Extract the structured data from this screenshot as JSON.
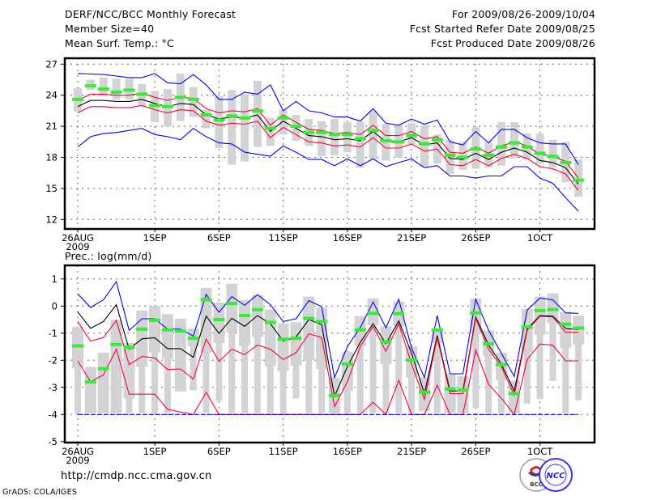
{
  "header": {
    "title": "DERF/NCC/BCC Monthly Forecast",
    "member_size": "Member Size=40",
    "variable": "Mean Surf. Temp.: °C",
    "period": "For 2009/08/26-2009/10/04",
    "start_date": "Fcst Started Refer Date 2009/08/25",
    "produced_date": "Fcst Produced Date 2009/08/26"
  },
  "footer": {
    "url": "http://cmdp.ncc.cma.gov.cn",
    "credit": "GrADS: COLA/IGES",
    "logo_left": "BCC",
    "logo_right": "NCC"
  },
  "colors": {
    "mean": "#000000",
    "spread": "#ff0033",
    "envelope": "#0000ff",
    "obs": "#33ee33",
    "range": "#d3d3d6"
  },
  "chart_data": [
    {
      "type": "line",
      "title": "Mean Surf. Temp.: °C",
      "xlabel": "",
      "ylabel": "",
      "ylim": [
        12,
        27
      ],
      "yticks": [
        12,
        15,
        18,
        21,
        24,
        27
      ],
      "x_tick_labels": [
        {
          "day": 0,
          "label": "26AUG",
          "sub": "2009"
        },
        {
          "day": 6,
          "label": "1SEP"
        },
        {
          "day": 11,
          "label": "6SEP"
        },
        {
          "day": 16,
          "label": "11SEP"
        },
        {
          "day": 21,
          "label": "16SEP"
        },
        {
          "day": 26,
          "label": "21SEP"
        },
        {
          "day": 31,
          "label": "26SEP"
        },
        {
          "day": 36,
          "label": "1OCT"
        }
      ],
      "grid": true,
      "days": 40,
      "series": [
        {
          "name": "ensemble_mean",
          "values": [
            22.9,
            23.5,
            23.5,
            23.4,
            23.4,
            23.6,
            23.2,
            22.9,
            23.2,
            23.1,
            22.1,
            21.7,
            21.9,
            21.8,
            22.1,
            20.5,
            21.5,
            20.8,
            20.1,
            20.0,
            19.7,
            19.8,
            19.6,
            20.5,
            19.5,
            19.5,
            19.9,
            19.2,
            19.4,
            17.9,
            17.8,
            18.4,
            17.8,
            18.5,
            18.9,
            18.5,
            17.7,
            17.5,
            17.0,
            15.4
          ]
        },
        {
          "name": "spread_upper",
          "values": [
            23.5,
            24.1,
            24.1,
            24.0,
            24.0,
            24.2,
            23.8,
            23.5,
            23.8,
            23.7,
            22.7,
            22.3,
            22.5,
            22.4,
            22.7,
            21.1,
            22.1,
            21.4,
            20.7,
            20.6,
            20.3,
            20.4,
            20.2,
            21.1,
            20.1,
            20.1,
            20.5,
            19.8,
            20.0,
            18.5,
            18.4,
            19.0,
            18.4,
            19.1,
            19.5,
            19.1,
            18.3,
            18.1,
            17.6,
            16.0
          ]
        },
        {
          "name": "spread_lower",
          "values": [
            22.3,
            22.9,
            22.9,
            22.8,
            22.8,
            23.0,
            22.6,
            22.3,
            22.6,
            22.5,
            21.5,
            21.1,
            21.3,
            21.2,
            21.5,
            19.9,
            20.9,
            20.2,
            19.5,
            19.4,
            19.1,
            19.2,
            19.0,
            19.9,
            18.9,
            18.9,
            19.3,
            18.6,
            18.8,
            17.3,
            17.2,
            17.8,
            17.2,
            17.9,
            18.3,
            17.9,
            17.1,
            16.9,
            16.4,
            14.8
          ]
        },
        {
          "name": "ensemble_max",
          "values": [
            26.1,
            26.05,
            26.0,
            25.85,
            25.7,
            25.7,
            26.1,
            25.2,
            25.1,
            26.0,
            25.0,
            23.6,
            23.6,
            24.3,
            24.1,
            25.0,
            22.5,
            23.4,
            22.5,
            22.3,
            21.9,
            21.9,
            21.5,
            22.7,
            21.3,
            21.1,
            21.7,
            21.2,
            21.6,
            19.5,
            19.2,
            20.5,
            19.4,
            20.7,
            20.7,
            19.9,
            19.4,
            19.3,
            19.3,
            17.3
          ]
        },
        {
          "name": "ensemble_min",
          "values": [
            19.0,
            20.0,
            20.3,
            20.4,
            20.6,
            20.8,
            20.2,
            20.0,
            19.7,
            20.8,
            20.0,
            19.4,
            19.3,
            18.5,
            18.3,
            18.1,
            19.1,
            18.5,
            17.8,
            17.8,
            17.2,
            17.85,
            17.2,
            17.85,
            17.1,
            17.5,
            17.85,
            17.0,
            17.2,
            16.2,
            16.2,
            16.0,
            16.2,
            16.2,
            17.1,
            17.1,
            16.0,
            15.5,
            14.1,
            12.8
          ]
        },
        {
          "name": "observed",
          "values": [
            23.6,
            24.9,
            24.6,
            24.3,
            24.5,
            24.1,
            23.0,
            22.9,
            23.8,
            23.6,
            22.1,
            21.6,
            22.0,
            21.8,
            22.5,
            20.8,
            21.8,
            21.0,
            20.4,
            20.4,
            20.2,
            20.2,
            19.8,
            20.6,
            19.6,
            19.5,
            20.1,
            19.3,
            19.7,
            18.2,
            18.0,
            18.8,
            18.2,
            19.0,
            19.4,
            19.0,
            18.4,
            18.1,
            17.5,
            15.8
          ]
        }
      ],
      "range_bars": {
        "high": [
          24.7,
          25.5,
          25.7,
          25.6,
          25.6,
          25.1,
          24.4,
          24.6,
          26.1,
          24.8,
          22.6,
          23.9,
          24.5,
          24.1,
          25.4,
          21.8,
          22.6,
          22.1,
          21.7,
          21.5,
          21.7,
          21.4,
          21.4,
          22.5,
          21.2,
          21.1,
          21.3,
          21.1,
          20.2,
          19.7,
          19.5,
          20.9,
          19.5,
          21.4,
          21.4,
          20.3,
          20.3,
          19.7,
          19.5,
          17.8
        ],
        "low": [
          22.4,
          24.5,
          23.9,
          23.6,
          23.6,
          23.0,
          21.4,
          21.0,
          21.5,
          21.9,
          20.8,
          18.9,
          17.3,
          17.6,
          19.0,
          19.1,
          20.2,
          19.6,
          19.1,
          18.1,
          18.2,
          18.5,
          17.0,
          17.8,
          17.7,
          18.0,
          19.3,
          17.1,
          17.4,
          16.4,
          16.8,
          16.9,
          17.0,
          17.2,
          17.9,
          17.8,
          17.4,
          17.0,
          15.6,
          14.2
        ]
      }
    },
    {
      "type": "line",
      "title": "Prec.: log(mm/d)",
      "xlabel": "",
      "ylabel": "",
      "ylim": [
        -5,
        1
      ],
      "yticks": [
        -5,
        -4,
        -3,
        -2,
        -1,
        0,
        1
      ],
      "x_tick_labels": [
        {
          "day": 0,
          "label": "26AUG",
          "sub": "2009"
        },
        {
          "day": 6,
          "label": "1SEP"
        },
        {
          "day": 11,
          "label": "6SEP"
        },
        {
          "day": 16,
          "label": "11SEP"
        },
        {
          "day": 21,
          "label": "16SEP"
        },
        {
          "day": 26,
          "label": "21SEP"
        },
        {
          "day": 31,
          "label": "26SEP"
        },
        {
          "day": 36,
          "label": "1OCT"
        }
      ],
      "grid": true,
      "days": 40,
      "series": [
        {
          "name": "ensemble_mean",
          "values": [
            -0.22,
            -0.82,
            -0.57,
            0.05,
            -1.59,
            -1.21,
            -1.17,
            -1.57,
            -1.57,
            -1.89,
            -0.37,
            -1.01,
            -0.45,
            -0.75,
            -0.35,
            -0.65,
            -1.29,
            -1.14,
            -0.5,
            -0.68,
            -3.33,
            -2.24,
            -1.34,
            -0.65,
            -1.39,
            -0.55,
            -1.74,
            -3.23,
            -1.09,
            -3.13,
            -3.13,
            -0.4,
            -1.44,
            -2.14,
            -3.13,
            -0.85,
            -0.35,
            -0.37,
            -0.83,
            -0.87
          ]
        },
        {
          "name": "spread_upper",
          "values": [
            -0.57,
            -1.29,
            -1.16,
            -0.53,
            -2.16,
            -1.86,
            -1.91,
            -2.34,
            -2.32,
            -2.69,
            -1.22,
            -2.04,
            -1.59,
            -1.79,
            -1.44,
            -1.59,
            -1.97,
            -1.72,
            -1.02,
            -1.16,
            -3.71,
            -2.8,
            -1.5,
            -0.75,
            -1.67,
            -0.65,
            -2.14,
            -3.45,
            -1.16,
            -3.23,
            -3.23,
            -0.45,
            -1.59,
            -2.24,
            -3.28,
            -0.9,
            -0.38,
            -0.4,
            -0.97,
            -0.97
          ]
        },
        {
          "name": "spread_lower",
          "values": [
            -2.02,
            -2.79,
            -2.54,
            -1.59,
            -3.25,
            -3.25,
            -3.25,
            -3.81,
            -3.91,
            -4,
            -3.18,
            -4,
            -4,
            -4,
            -4,
            -4,
            -4,
            -4,
            -4,
            -4,
            -4,
            -4,
            -4,
            -3.55,
            -4,
            -2.74,
            -4,
            -4,
            -2.92,
            -4,
            -4,
            -1.62,
            -2.89,
            -3.4,
            -4,
            -1.97,
            -1.4,
            -1.44,
            -2.02,
            -2.02
          ]
        },
        {
          "name": "ensemble_max",
          "values": [
            0.45,
            -0.05,
            0.23,
            0.9,
            -0.9,
            -0.47,
            -0.47,
            -0.85,
            -0.85,
            -1.11,
            0.43,
            -0.23,
            0.35,
            0.03,
            0.42,
            0.05,
            -0.57,
            -0.47,
            0.2,
            -0.02,
            -2.64,
            -1.5,
            -0.8,
            0.15,
            -0.8,
            0.25,
            -1.55,
            -2.64,
            -0.35,
            -2.5,
            -2.5,
            0.25,
            -0.9,
            -1.74,
            -2.6,
            -0.15,
            0.3,
            0.23,
            -0.25,
            -0.27
          ]
        },
        {
          "name": "ensemble_min",
          "values": [
            -4,
            -4,
            -4,
            -4,
            -4,
            -4,
            -4,
            -4,
            -4,
            -4,
            -4,
            -4,
            -4,
            -4,
            -4,
            -4,
            -4,
            -4,
            -4,
            -4,
            -4,
            -4,
            -4,
            -4,
            -4,
            -4,
            -4,
            -4,
            -4,
            -4,
            -4,
            -4,
            -4,
            -4,
            -4,
            -4,
            -4,
            -4,
            -4,
            -4
          ]
        },
        {
          "name": "observed",
          "values": [
            -1.47,
            -2.8,
            -2.31,
            -1.42,
            -1.52,
            -0.85,
            -0.53,
            -0.88,
            -0.92,
            -1.19,
            0.23,
            -0.5,
            0.1,
            -0.35,
            -0.13,
            -0.6,
            -1.22,
            -1.19,
            -0.45,
            -0.57,
            -3.3,
            -2.14,
            -0.88,
            -0.27,
            -1.32,
            -0.28,
            -1.99,
            -3.18,
            -0.88,
            -3.06,
            -3.1,
            -0.25,
            -1.39,
            -2.16,
            -3.23,
            -0.77,
            -0.17,
            -0.13,
            -0.67,
            -0.81
          ]
        }
      ],
      "range_bars": {
        "high": [
          -0.77,
          -2.24,
          -1.72,
          -0.5,
          -1.36,
          -0.17,
          0.0,
          -0.3,
          -0.47,
          -0.83,
          0.67,
          0.13,
          0.82,
          0.22,
          0.4,
          -0.13,
          -0.65,
          -0.6,
          0.35,
          -0.05,
          -2.64,
          -1.69,
          -0.37,
          0.28,
          -0.75,
          0.17,
          -1.49,
          -2.64,
          -0.87,
          -2.49,
          -2.59,
          0.28,
          -0.9,
          -1.72,
          -2.76,
          -0.1,
          0.35,
          0.47,
          -0.23,
          -0.35
        ],
        "box_low": [
          -2.29,
          -3.95,
          -3.95,
          -3.95,
          -3.41,
          -2.24,
          -1.72,
          -1.94,
          -3.15,
          -1.49,
          -1.72,
          -1.37,
          -0.97,
          -1.47,
          -1.14,
          -2.22,
          -2.39,
          -2.19,
          -1.99,
          -2.32,
          -3.95,
          -3.13,
          -1.49,
          -0.7,
          -2.14,
          -0.75,
          -2.64,
          -3.88,
          -1.36,
          -3.95,
          -3.95,
          -1.0,
          -1.86,
          -2.74,
          -3.95,
          -1.69,
          -1.06,
          -0.63,
          -1.54,
          -1.42
        ],
        "low": [
          -3.95,
          -3.95,
          -3.95,
          -3.95,
          -3.95,
          -3.95,
          -3.95,
          -3.95,
          -3.15,
          -3.11,
          -3.95,
          -3.5,
          -3.95,
          -3.95,
          -3.95,
          -3.95,
          -3.95,
          -3.41,
          -3.95,
          -3.95,
          -3.95,
          -3.95,
          -3.95,
          -3.95,
          -3.95,
          -3.95,
          -3.95,
          -3.88,
          -3.95,
          -3.95,
          -3.95,
          -3.75,
          -3.95,
          -3.95,
          -3.95,
          -3.6,
          -3.43,
          -2.76,
          -3.95,
          -3.48
        ]
      }
    }
  ]
}
